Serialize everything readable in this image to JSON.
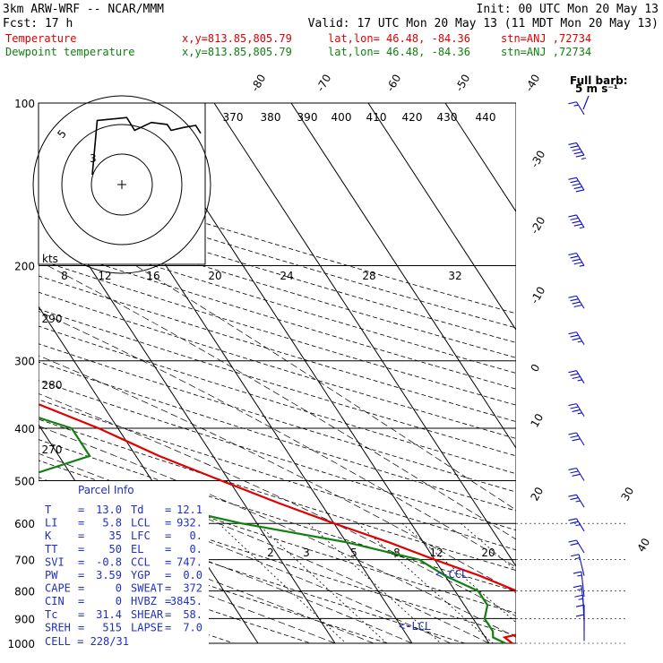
{
  "header": {
    "model": "3km ARW-WRF -- NCAR/MMM",
    "init": "Init: 00 UTC Mon 20 May 13",
    "fcst": "Fcst:   17 h",
    "valid": "Valid: 17 UTC Mon 20 May 13 (11 MDT Mon 20 May 13)",
    "temp_line": {
      "label": "Temperature",
      "xy": "x,y=813.85,805.79",
      "latlon": "lat,lon= 46.48, -84.36",
      "stn": "stn=ANJ ,72734"
    },
    "dew_line": {
      "label": "Dewpoint temperature",
      "xy": "x,y=813.85,805.79",
      "latlon": "lat,lon= 46.48, -84.36",
      "stn": "stn=ANJ ,72734"
    }
  },
  "colors": {
    "temperature": "#e00000",
    "dewpoint": "#108010",
    "barbs": "#1010c0",
    "parcel_title": "#2030c0"
  },
  "full_barb_label": "Full barb:",
  "full_barb_unit": "5 m s⁻¹",
  "hodograph": {
    "axis_label": "kts",
    "ring_labels": [
      "5",
      "3"
    ],
    "points": [
      [
        -3,
        1
      ],
      [
        -2.5,
        6.5
      ],
      [
        0.5,
        6.8
      ],
      [
        1.3,
        5.5
      ],
      [
        3,
        6.3
      ],
      [
        4.6,
        6.1
      ],
      [
        5,
        5.5
      ],
      [
        6.3,
        5.8
      ],
      [
        7.5,
        6
      ],
      [
        8,
        5.2
      ]
    ]
  },
  "parcel": {
    "title": "Parcel Info",
    "rows": [
      {
        "k1": "T",
        "v1": "13.0",
        "k2": "Td",
        "v2": "12.1"
      },
      {
        "k1": "LI",
        "v1": "5.8",
        "k2": "LCL",
        "v2": "932."
      },
      {
        "k1": "K",
        "v1": "35",
        "k2": "LFC",
        "v2": "0."
      },
      {
        "k1": "TT",
        "v1": "50",
        "k2": "EL",
        "v2": "0."
      },
      {
        "k1": "SVI",
        "v1": "-0.8",
        "k2": "CCL",
        "v2": "747."
      },
      {
        "k1": "PW",
        "v1": "3.59",
        "k2": "YGP",
        "v2": "0.0"
      },
      {
        "k1": "CAPE",
        "v1": "0",
        "k2": "SWEAT",
        "v2": "372"
      },
      {
        "k1": "CIN",
        "v1": "0",
        "k2": "HVBZ",
        "v2": "3845."
      },
      {
        "k1": "Tc",
        "v1": "31.4",
        "k2": "SHEAR",
        "v2": "58."
      },
      {
        "k1": "SREH",
        "v1": "515",
        "k2": "LAPSE",
        "v2": "7.0"
      }
    ],
    "cell": "CELL = 228/31"
  },
  "markers": {
    "ccl": "<-CCL",
    "lcl": "<-LCL"
  },
  "chart_data": {
    "type": "skew-t",
    "y_axis": "pressure",
    "pressure_levels": [
      100,
      200,
      300,
      400,
      500,
      600,
      700,
      800,
      900,
      1000
    ],
    "temperature_isotherm_labels": [
      -80,
      -70,
      -60,
      -50,
      -40,
      -30,
      -20,
      -10,
      0,
      10,
      20,
      30,
      40
    ],
    "theta_labels": [
      370,
      380,
      390,
      400,
      410,
      420,
      430,
      440
    ],
    "theta_left_labels": [
      290,
      280,
      270
    ],
    "mixing_ratio_top_labels": [
      8,
      12,
      16,
      20,
      24,
      28,
      32
    ],
    "mixing_ratio_bottom_labels": [
      2,
      3,
      5,
      8,
      12,
      20
    ],
    "series": [
      {
        "name": "Temperature",
        "points": [
          [
            1000,
            13.0
          ],
          [
            975,
            12.5
          ],
          [
            950,
            16.5
          ],
          [
            925,
            18.0
          ],
          [
            900,
            21.0
          ],
          [
            850,
            21.0
          ],
          [
            800,
            18.0
          ],
          [
            750,
            14.5
          ],
          [
            700,
            10.0
          ],
          [
            650,
            5.5
          ],
          [
            600,
            0.0
          ],
          [
            550,
            -5.5
          ],
          [
            500,
            -11.0
          ],
          [
            450,
            -17.0
          ],
          [
            400,
            -22.5
          ],
          [
            350,
            -30.0
          ],
          [
            300,
            -38.0
          ],
          [
            250,
            -47.5
          ],
          [
            200,
            -57.0
          ],
          [
            175,
            -60.0
          ],
          [
            150,
            -62.0
          ],
          [
            125,
            -62.0
          ],
          [
            100,
            -60.0
          ]
        ]
      },
      {
        "name": "Dewpoint temperature",
        "points": [
          [
            1000,
            12.1
          ],
          [
            975,
            11.0
          ],
          [
            950,
            11.5
          ],
          [
            900,
            11.5
          ],
          [
            850,
            13.0
          ],
          [
            800,
            13.0
          ],
          [
            750,
            10.0
          ],
          [
            700,
            8.0
          ],
          [
            650,
            0.0
          ],
          [
            600,
            -12.0
          ],
          [
            550,
            -22.0
          ],
          [
            500,
            -38.0
          ],
          [
            450,
            -26.0
          ],
          [
            400,
            -26.0
          ],
          [
            350,
            -36.0
          ],
          [
            300,
            -46.0
          ],
          [
            250,
            -60.0
          ],
          [
            200,
            -72.0
          ],
          [
            175,
            -76.0
          ],
          [
            150,
            -80.0
          ],
          [
            125,
            -80.0
          ],
          [
            100,
            -76.0
          ]
        ]
      }
    ],
    "wind_barbs": [
      {
        "p": 105,
        "spd": 15,
        "dir": 250
      },
      {
        "p": 125,
        "spd": 55,
        "dir": 250
      },
      {
        "p": 145,
        "spd": 50,
        "dir": 250
      },
      {
        "p": 170,
        "spd": 45,
        "dir": 250
      },
      {
        "p": 200,
        "spd": 45,
        "dir": 250
      },
      {
        "p": 240,
        "spd": 40,
        "dir": 250
      },
      {
        "p": 280,
        "spd": 35,
        "dir": 250
      },
      {
        "p": 330,
        "spd": 35,
        "dir": 250
      },
      {
        "p": 380,
        "spd": 35,
        "dir": 250
      },
      {
        "p": 430,
        "spd": 30,
        "dir": 250
      },
      {
        "p": 500,
        "spd": 30,
        "dir": 250
      },
      {
        "p": 560,
        "spd": 25,
        "dir": 250
      },
      {
        "p": 620,
        "spd": 25,
        "dir": 250
      },
      {
        "p": 680,
        "spd": 20,
        "dir": 250
      },
      {
        "p": 750,
        "spd": 15,
        "dir": 220
      },
      {
        "p": 820,
        "spd": 15,
        "dir": 200
      },
      {
        "p": 870,
        "spd": 15,
        "dir": 200
      },
      {
        "p": 910,
        "spd": 15,
        "dir": 190
      },
      {
        "p": 950,
        "spd": 10,
        "dir": 180
      },
      {
        "p": 990,
        "spd": 10,
        "dir": 180
      }
    ]
  }
}
